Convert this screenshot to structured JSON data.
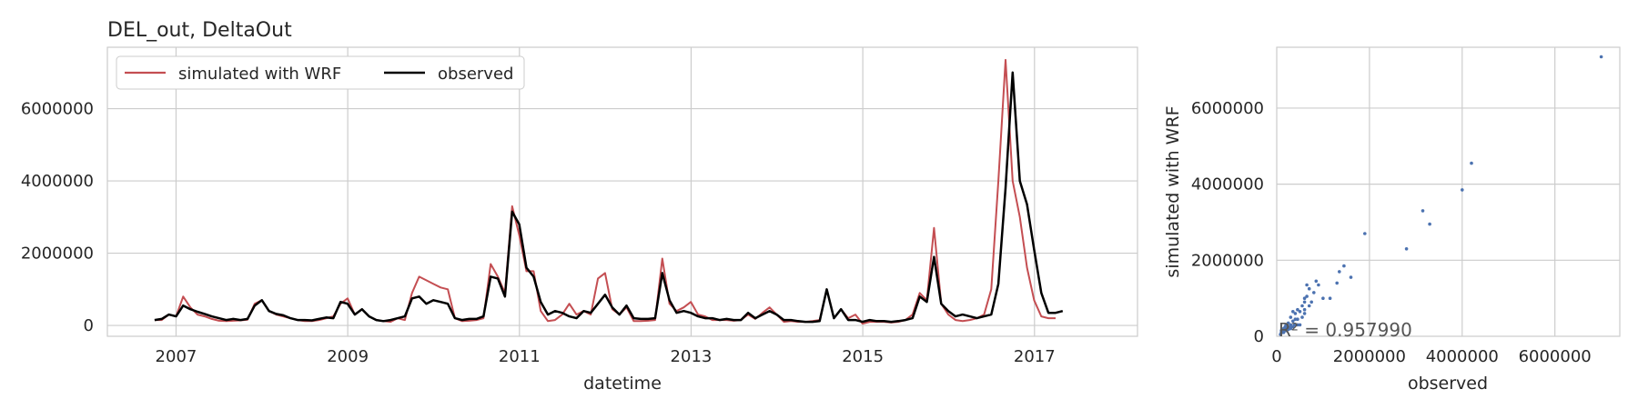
{
  "chart_data": [
    {
      "type": "line",
      "title": "DEL_out, DeltaOut",
      "xlabel": "datetime",
      "ylabel": "",
      "xlim": [
        2006.2,
        2018.2
      ],
      "ylim": [
        -300000,
        7700000
      ],
      "xticks": [
        2007,
        2009,
        2011,
        2013,
        2015,
        2017
      ],
      "xtick_labels": [
        "2007",
        "2009",
        "2011",
        "2013",
        "2015",
        "2017"
      ],
      "yticks": [
        0,
        2000000,
        4000000,
        6000000
      ],
      "ytick_labels": [
        "0",
        "2000000",
        "4000000",
        "6000000"
      ],
      "grid": true,
      "legend": {
        "position": "top-left",
        "columns": 2
      },
      "x_start": 2006.75,
      "x_step": 0.0833,
      "series": [
        {
          "name": "simulated with WRF",
          "color": "#c44e52",
          "values": [
            150000,
            150000,
            300000,
            250000,
            800000,
            500000,
            300000,
            250000,
            180000,
            130000,
            120000,
            130000,
            140000,
            160000,
            600000,
            700000,
            400000,
            300000,
            250000,
            200000,
            150000,
            120000,
            120000,
            150000,
            200000,
            250000,
            600000,
            750000,
            300000,
            450000,
            250000,
            150000,
            120000,
            100000,
            200000,
            150000,
            900000,
            1350000,
            1250000,
            1150000,
            1050000,
            1000000,
            200000,
            120000,
            130000,
            150000,
            200000,
            1700000,
            1350000,
            900000,
            3300000,
            2500000,
            1500000,
            1500000,
            400000,
            120000,
            150000,
            300000,
            600000,
            300000,
            400000,
            300000,
            1300000,
            1450000,
            450000,
            300000,
            500000,
            120000,
            120000,
            130000,
            150000,
            1850000,
            600000,
            400000,
            500000,
            650000,
            300000,
            250000,
            150000,
            150000,
            150000,
            130000,
            150000,
            300000,
            180000,
            350000,
            500000,
            300000,
            100000,
            120000,
            100000,
            100000,
            120000,
            150000,
            1000000,
            200000,
            450000,
            200000,
            300000,
            50000,
            100000,
            100000,
            100000,
            80000,
            100000,
            150000,
            300000,
            900000,
            700000,
            2700000,
            600000,
            300000,
            150000,
            120000,
            150000,
            200000,
            300000,
            1000000,
            4000000,
            7350000,
            4000000,
            3000000,
            1600000,
            700000,
            250000,
            200000,
            200000
          ],
          "linewidth": 2
        },
        {
          "name": "observed",
          "color": "#000000",
          "values": [
            150000,
            180000,
            300000,
            250000,
            550000,
            450000,
            380000,
            320000,
            250000,
            200000,
            150000,
            180000,
            150000,
            180000,
            550000,
            700000,
            400000,
            320000,
            280000,
            200000,
            150000,
            150000,
            140000,
            180000,
            220000,
            200000,
            650000,
            600000,
            300000,
            450000,
            250000,
            150000,
            120000,
            150000,
            200000,
            250000,
            750000,
            800000,
            600000,
            700000,
            650000,
            600000,
            200000,
            150000,
            180000,
            180000,
            250000,
            1350000,
            1300000,
            800000,
            3150000,
            2800000,
            1600000,
            1350000,
            650000,
            300000,
            400000,
            350000,
            250000,
            200000,
            400000,
            350000,
            600000,
            850000,
            500000,
            300000,
            550000,
            200000,
            180000,
            180000,
            200000,
            1450000,
            700000,
            350000,
            400000,
            350000,
            250000,
            200000,
            200000,
            150000,
            180000,
            150000,
            150000,
            350000,
            200000,
            300000,
            400000,
            300000,
            150000,
            150000,
            120000,
            100000,
            100000,
            120000,
            1000000,
            200000,
            450000,
            150000,
            150000,
            100000,
            150000,
            120000,
            120000,
            100000,
            120000,
            150000,
            200000,
            800000,
            650000,
            1900000,
            600000,
            400000,
            250000,
            300000,
            250000,
            200000,
            250000,
            300000,
            1150000,
            3800000,
            7000000,
            4000000,
            3350000,
            2100000,
            900000,
            350000,
            350000,
            400000
          ],
          "linewidth": 2.5
        }
      ]
    },
    {
      "type": "scatter",
      "title": "",
      "xlabel": "observed",
      "ylabel": "simulated with WRF",
      "xlim": [
        0,
        7400000
      ],
      "ylim": [
        0,
        7600000
      ],
      "xticks": [
        0,
        2000000,
        4000000,
        6000000
      ],
      "xtick_labels": [
        "0",
        "2000000",
        "4000000",
        "6000000"
      ],
      "yticks": [
        0,
        2000000,
        4000000,
        6000000
      ],
      "ytick_labels": [
        "0",
        "2000000",
        "4000000",
        "6000000"
      ],
      "grid": true,
      "color": "#4c72b0",
      "annotation": "R² = 0.957990",
      "points": [
        [
          7000000,
          7350000
        ],
        [
          4200000,
          4550000
        ],
        [
          4000000,
          3850000
        ],
        [
          3300000,
          2950000
        ],
        [
          3150000,
          3300000
        ],
        [
          2800000,
          2300000
        ],
        [
          1900000,
          2700000
        ],
        [
          1600000,
          1550000
        ],
        [
          1450000,
          1850000
        ],
        [
          1350000,
          1700000
        ],
        [
          1300000,
          1400000
        ],
        [
          1150000,
          1000000
        ],
        [
          1000000,
          1000000
        ],
        [
          900000,
          1350000
        ],
        [
          850000,
          1450000
        ],
        [
          800000,
          1150000
        ],
        [
          750000,
          900000
        ],
        [
          700000,
          1250000
        ],
        [
          700000,
          800000
        ],
        [
          650000,
          1350000
        ],
        [
          650000,
          1050000
        ],
        [
          600000,
          700000
        ],
        [
          600000,
          900000
        ],
        [
          600000,
          600000
        ],
        [
          550000,
          800000
        ],
        [
          550000,
          500000
        ],
        [
          500000,
          650000
        ],
        [
          450000,
          450000
        ],
        [
          450000,
          300000
        ],
        [
          400000,
          450000
        ],
        [
          400000,
          300000
        ],
        [
          400000,
          600000
        ],
        [
          350000,
          400000
        ],
        [
          350000,
          250000
        ],
        [
          300000,
          300000
        ],
        [
          300000,
          500000
        ],
        [
          250000,
          250000
        ],
        [
          250000,
          350000
        ],
        [
          200000,
          200000
        ],
        [
          200000,
          300000
        ],
        [
          200000,
          150000
        ],
        [
          180000,
          150000
        ],
        [
          150000,
          120000
        ],
        [
          150000,
          200000
        ],
        [
          120000,
          100000
        ],
        [
          100000,
          100000
        ],
        [
          100000,
          150000
        ],
        [
          80000,
          50000
        ],
        [
          180000,
          250000
        ],
        [
          250000,
          180000
        ],
        [
          320000,
          250000
        ],
        [
          380000,
          300000
        ],
        [
          220000,
          250000
        ],
        [
          150000,
          100000
        ],
        [
          120000,
          150000
        ],
        [
          600000,
          1000000
        ],
        [
          450000,
          700000
        ],
        [
          300000,
          200000
        ],
        [
          350000,
          650000
        ],
        [
          500000,
          300000
        ]
      ]
    }
  ]
}
